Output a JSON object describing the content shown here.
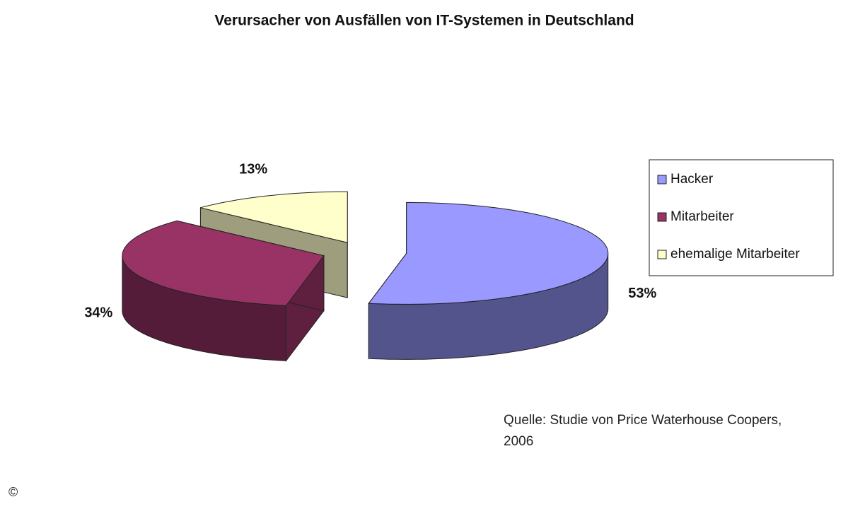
{
  "chart_data": {
    "type": "pie3d",
    "title": "Verursacher von Ausfällen von IT-Systemen in Deutschland",
    "categories": [
      "Hacker",
      "Mitarbeiter",
      "ehemalige Mitarbeiter"
    ],
    "values": [
      53,
      34,
      13
    ],
    "value_labels": [
      "53%",
      "34%",
      "13%"
    ],
    "colors": [
      "#9999ff",
      "#993366",
      "#ffffcc"
    ],
    "legend": "right",
    "source": "Quelle: Studie von Price Waterhouse Coopers, 2006",
    "copyright": "©"
  }
}
